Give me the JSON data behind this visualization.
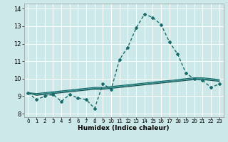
{
  "xlabel": "Humidex (Indice chaleur)",
  "ylabel": "",
  "xlim": [
    -0.5,
    23.5
  ],
  "ylim": [
    7.8,
    14.3
  ],
  "yticks": [
    8,
    9,
    10,
    11,
    12,
    13,
    14
  ],
  "xticks": [
    0,
    1,
    2,
    3,
    4,
    5,
    6,
    7,
    8,
    9,
    10,
    11,
    12,
    13,
    14,
    15,
    16,
    17,
    18,
    19,
    20,
    21,
    22,
    23
  ],
  "background_color": "#cce8e8",
  "grid_color": "#ffffff",
  "lines": [
    {
      "x": [
        0,
        1,
        2,
        3,
        4,
        5,
        6,
        7,
        8,
        9,
        10,
        11,
        12,
        13,
        14,
        15,
        16,
        17,
        18,
        19,
        20,
        21,
        22,
        23
      ],
      "y": [
        9.2,
        8.8,
        9.0,
        9.1,
        8.7,
        9.1,
        8.9,
        8.8,
        8.3,
        9.7,
        9.4,
        11.1,
        11.8,
        12.9,
        13.7,
        13.5,
        13.1,
        12.1,
        11.4,
        10.3,
        10.0,
        9.9,
        9.5,
        9.7
      ],
      "color": "#1a6b6b",
      "lw": 1.0,
      "marker": "D",
      "markersize": 2.0
    },
    {
      "x": [
        0,
        1,
        2,
        3,
        4,
        5,
        6,
        7,
        8,
        9,
        10,
        11,
        12,
        13,
        14,
        15,
        16,
        17,
        18,
        19,
        20,
        21,
        22,
        23
      ],
      "y": [
        9.2,
        9.15,
        9.2,
        9.25,
        9.3,
        9.35,
        9.4,
        9.45,
        9.5,
        9.5,
        9.55,
        9.6,
        9.65,
        9.7,
        9.75,
        9.8,
        9.85,
        9.9,
        9.95,
        10.0,
        10.05,
        10.05,
        10.0,
        9.95
      ],
      "color": "#1a6b6b",
      "lw": 0.9,
      "marker": null,
      "markersize": 0
    },
    {
      "x": [
        0,
        1,
        2,
        3,
        4,
        5,
        6,
        7,
        8,
        9,
        10,
        11,
        12,
        13,
        14,
        15,
        16,
        17,
        18,
        19,
        20,
        21,
        22,
        23
      ],
      "y": [
        9.2,
        9.1,
        9.15,
        9.2,
        9.25,
        9.3,
        9.35,
        9.4,
        9.45,
        9.45,
        9.5,
        9.55,
        9.6,
        9.65,
        9.7,
        9.75,
        9.8,
        9.85,
        9.9,
        9.95,
        10.0,
        10.0,
        9.95,
        9.9
      ],
      "color": "#2a8a8a",
      "lw": 0.9,
      "marker": null,
      "markersize": 0
    },
    {
      "x": [
        0,
        1,
        2,
        3,
        4,
        5,
        6,
        7,
        8,
        9,
        10,
        11,
        12,
        13,
        14,
        15,
        16,
        17,
        18,
        19,
        20,
        21,
        22,
        23
      ],
      "y": [
        9.2,
        9.05,
        9.1,
        9.15,
        9.2,
        9.25,
        9.3,
        9.35,
        9.4,
        9.4,
        9.45,
        9.5,
        9.55,
        9.6,
        9.65,
        9.7,
        9.75,
        9.8,
        9.85,
        9.9,
        9.95,
        9.95,
        9.9,
        9.85
      ],
      "color": "#1a5555",
      "lw": 0.9,
      "marker": null,
      "markersize": 0
    }
  ]
}
